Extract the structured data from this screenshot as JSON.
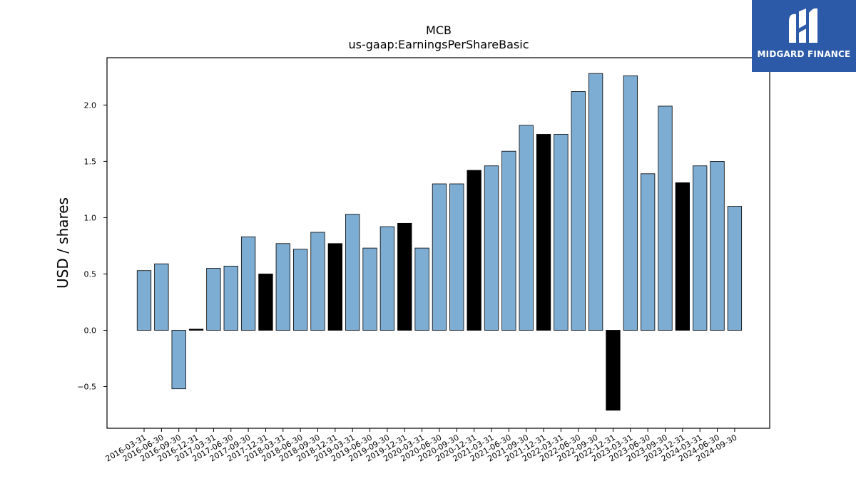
{
  "chart_data": {
    "type": "bar",
    "title": "MCB",
    "subtitle": "us-gaap:EarningsPerShareBasic",
    "xlabel": "",
    "ylabel": "USD / shares",
    "ylim": [
      -0.87,
      2.42
    ],
    "yticks": [
      -0.5,
      0.0,
      0.5,
      1.0,
      1.5,
      2.0
    ],
    "ytick_labels": [
      "−0.5",
      "0.0",
      "0.5",
      "1.0",
      "1.5",
      "2.0"
    ],
    "grid": false,
    "categories": [
      "2016-03-31",
      "2016-06-30",
      "2016-09-30",
      "2016-12-31",
      "2017-03-31",
      "2017-06-30",
      "2017-09-30",
      "2017-12-31",
      "2018-03-31",
      "2018-06-30",
      "2018-09-30",
      "2018-12-31",
      "2019-03-31",
      "2019-06-30",
      "2019-09-30",
      "2019-12-31",
      "2020-03-31",
      "2020-06-30",
      "2020-09-30",
      "2020-12-31",
      "2021-03-31",
      "2021-06-30",
      "2021-09-30",
      "2021-12-31",
      "2022-03-31",
      "2022-06-30",
      "2022-09-30",
      "2022-12-31",
      "2023-03-31",
      "2023-06-30",
      "2023-09-30",
      "2023-12-31",
      "2024-03-31",
      "2024-06-30",
      "2024-09-30"
    ],
    "values": [
      0.53,
      0.59,
      -0.52,
      0.01,
      0.55,
      0.57,
      0.83,
      0.5,
      0.77,
      0.72,
      0.87,
      0.77,
      1.03,
      0.73,
      0.92,
      0.95,
      0.73,
      1.3,
      1.3,
      1.42,
      1.46,
      1.59,
      1.82,
      1.74,
      1.74,
      2.12,
      2.28,
      -0.71,
      2.26,
      1.39,
      1.99,
      1.31,
      1.46,
      1.5,
      1.1
    ],
    "highlight": [
      false,
      false,
      false,
      true,
      false,
      false,
      false,
      true,
      false,
      false,
      false,
      true,
      false,
      false,
      false,
      true,
      false,
      false,
      false,
      true,
      false,
      false,
      false,
      true,
      false,
      false,
      false,
      true,
      false,
      false,
      false,
      true,
      false,
      false,
      false
    ],
    "colors": {
      "normal": "#7eadd3",
      "highlight": "#000000",
      "edge": "#000000"
    }
  },
  "logo": {
    "text": "MIDGARD FINANCE",
    "background": "#2c5aa8"
  }
}
